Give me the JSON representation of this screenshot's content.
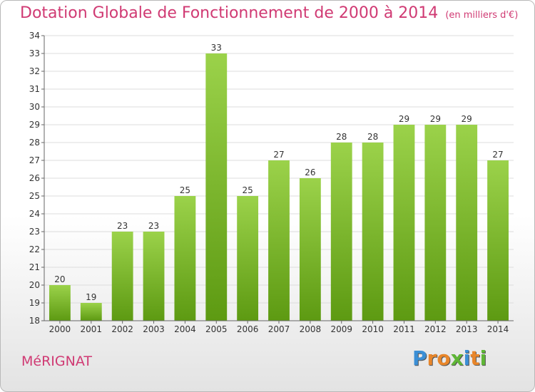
{
  "header": {
    "title": "Dotation Globale de Fonctionnement de 2000 à 2014",
    "unit": "(en milliers d'€)"
  },
  "footer": {
    "city": "MéRIGNAT",
    "logo_letters": [
      "P",
      "r",
      "o",
      "x",
      "i",
      "t",
      "i"
    ],
    "logo_colors": [
      "#3b8fd6",
      "#e8862a",
      "#e8862a",
      "#5fb636",
      "#3b8fd6",
      "#e8862a",
      "#5fb636"
    ]
  },
  "chart_data": {
    "type": "bar",
    "title": "Dotation Globale de Fonctionnement de 2000 à 2014",
    "subtitle": "(en milliers d'€)",
    "categories": [
      "2000",
      "2001",
      "2002",
      "2003",
      "2004",
      "2005",
      "2006",
      "2007",
      "2008",
      "2009",
      "2010",
      "2011",
      "2012",
      "2013",
      "2014"
    ],
    "values": [
      20,
      19,
      23,
      23,
      25,
      33,
      25,
      27,
      26,
      28,
      28,
      29,
      29,
      29,
      27
    ],
    "ylim": [
      18,
      34
    ],
    "yticks": [
      18,
      19,
      20,
      21,
      22,
      23,
      24,
      25,
      26,
      27,
      28,
      29,
      30,
      31,
      32,
      33,
      34
    ],
    "grid": true,
    "bar_color_top": "#9bd24a",
    "bar_color_bottom": "#5d9a12"
  }
}
